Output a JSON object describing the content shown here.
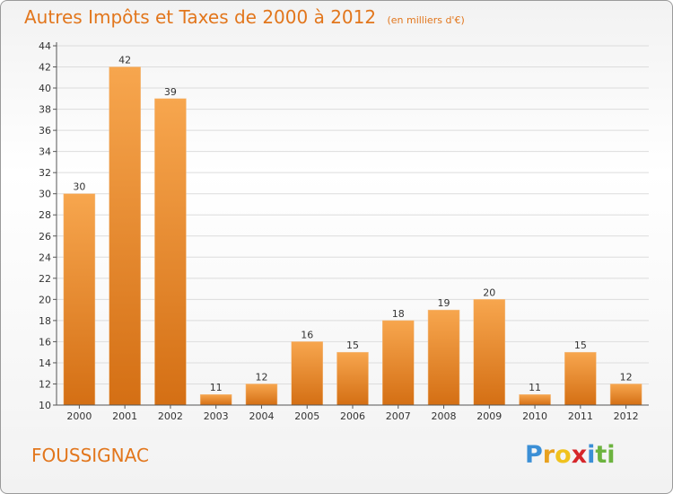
{
  "header": {
    "title": "Autres Impôts et Taxes de 2000 à 2012",
    "unit": "(en milliers d'€)"
  },
  "footer": {
    "commune": "FOUSSIGNAC"
  },
  "logo": {
    "letters": [
      {
        "ch": "P",
        "color": "#3b8fd6"
      },
      {
        "ch": "r",
        "color": "#e8a11f"
      },
      {
        "ch": "o",
        "color": "#f0c21e"
      },
      {
        "ch": "x",
        "color": "#d6262a"
      },
      {
        "ch": "i",
        "color": "#3b8fd6"
      },
      {
        "ch": "t",
        "color": "#6cb33f"
      },
      {
        "ch": "i",
        "color": "#6cb33f"
      }
    ]
  },
  "colors": {
    "bar_top": "#f7a64e",
    "bar_bottom": "#d46f14",
    "accent": "#e2761c",
    "axis": "#555555"
  },
  "chart_data": {
    "type": "bar",
    "categories": [
      "2000",
      "2001",
      "2002",
      "2003",
      "2004",
      "2005",
      "2006",
      "2007",
      "2008",
      "2009",
      "2010",
      "2011",
      "2012"
    ],
    "values": [
      30,
      42,
      39,
      11,
      12,
      16,
      15,
      18,
      19,
      20,
      11,
      15,
      12
    ],
    "title": "Autres Impôts et Taxes de 2000 à 2012",
    "ylim": [
      10,
      44
    ],
    "yticks": [
      10,
      12,
      14,
      16,
      18,
      20,
      22,
      24,
      26,
      28,
      30,
      32,
      34,
      36,
      38,
      40,
      42,
      44
    ],
    "grid": "horizontal"
  }
}
